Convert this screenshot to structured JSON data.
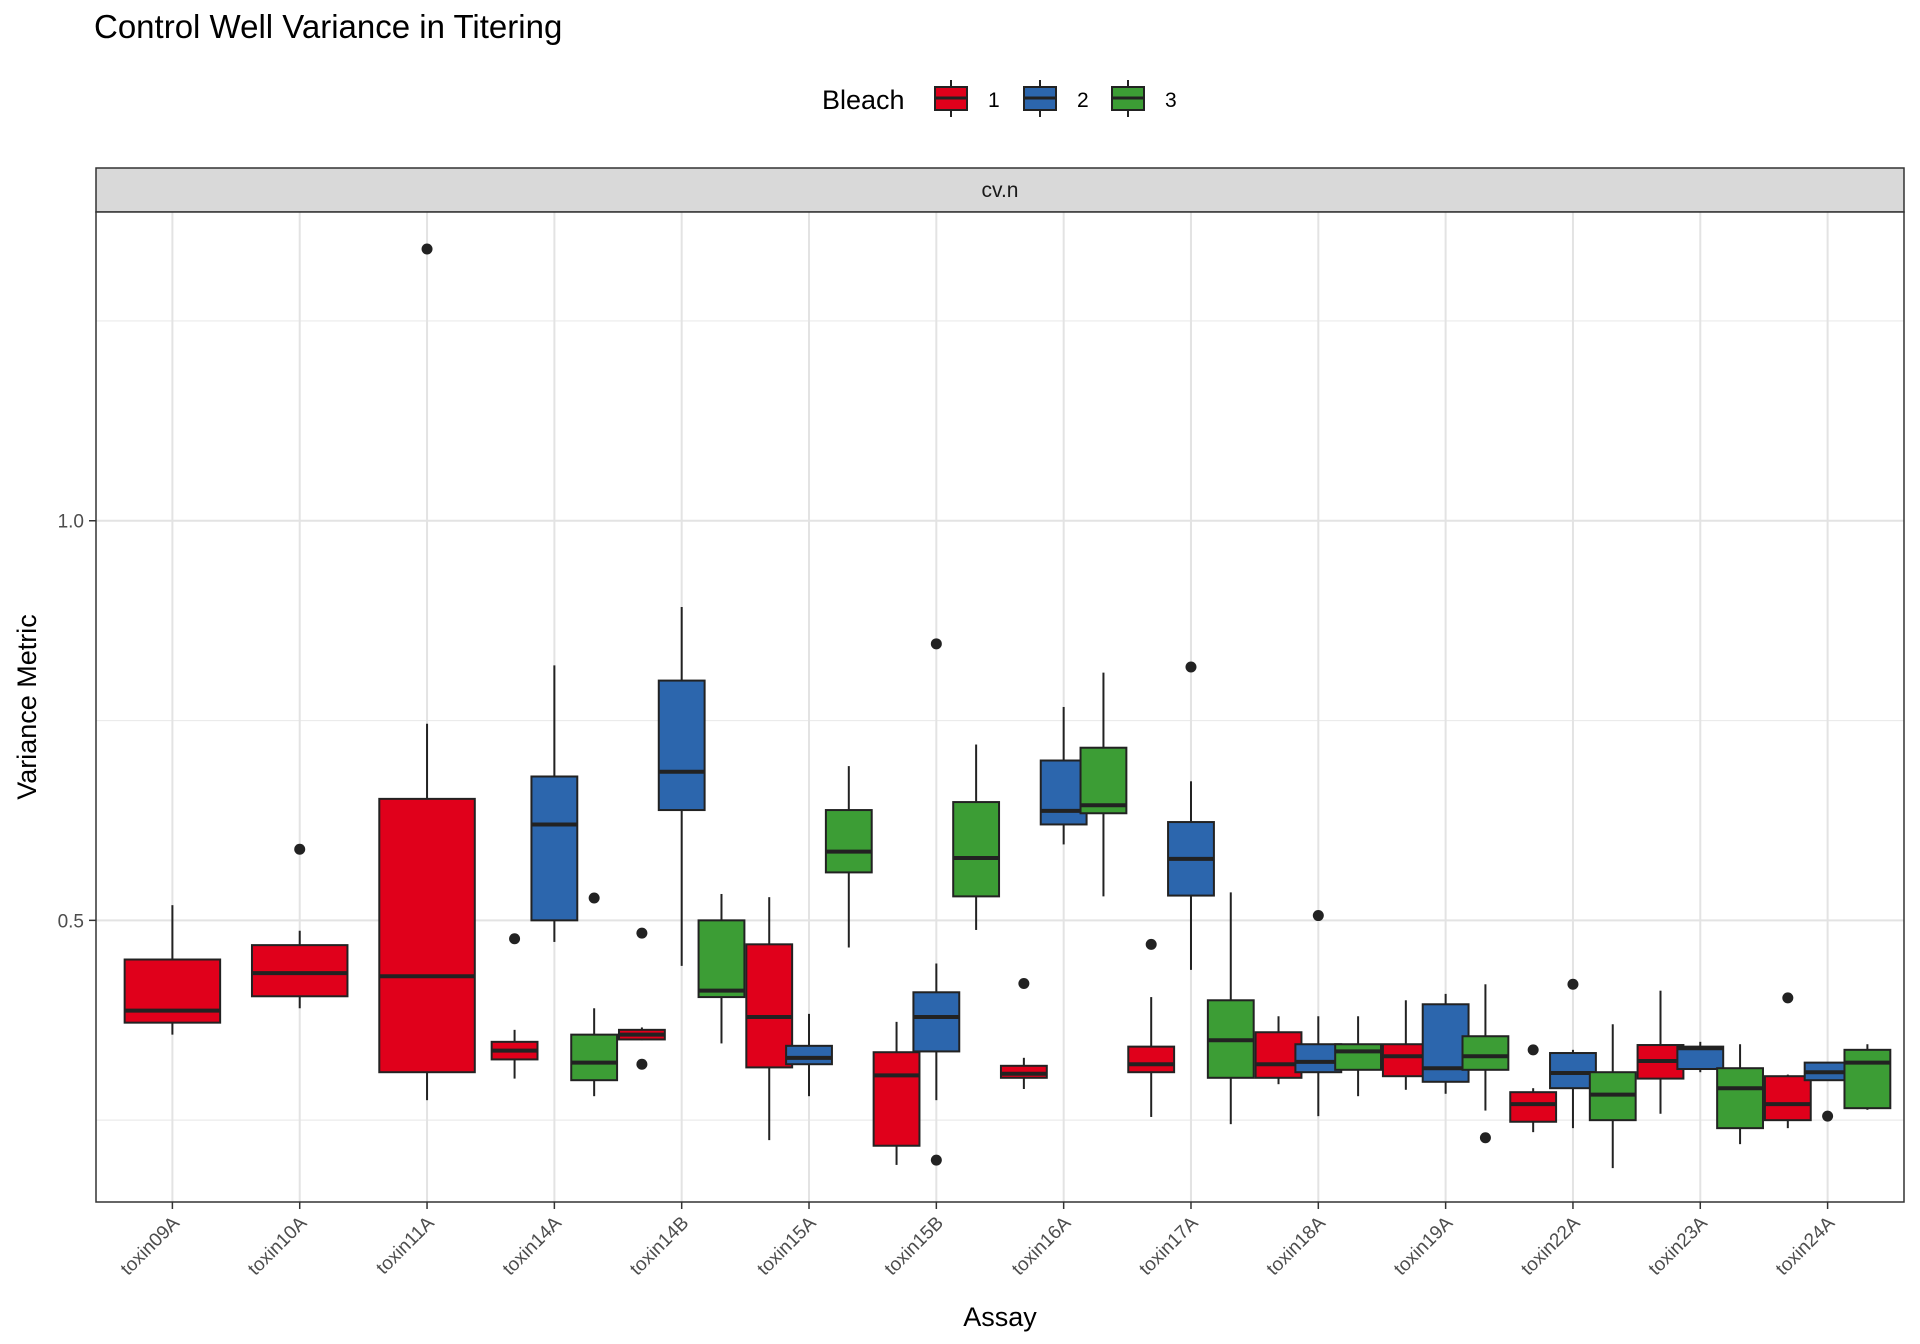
{
  "chart_data": {
    "type": "boxplot",
    "title": "Control Well Variance in Titering",
    "xlabel": "Assay",
    "ylabel": "Variance Metric",
    "facet_label": "cv.n",
    "legend_title": "Bleach",
    "legend_position": "top",
    "ylim": [
      0.1476,
      1.3863
    ],
    "yticks": [
      0.5,
      1.0
    ],
    "ytick_labels": [
      "0.5",
      "1.0"
    ],
    "minor_grid_y": [
      0.25,
      0.75,
      1.25
    ],
    "grid": true,
    "categories": [
      "toxin09A",
      "toxin10A",
      "toxin11A",
      "toxin14A",
      "toxin14B",
      "toxin15A",
      "toxin15B",
      "toxin16A",
      "toxin17A",
      "toxin18A",
      "toxin19A",
      "toxin22A",
      "toxin23A",
      "toxin24A"
    ],
    "series": [
      {
        "name": "1",
        "color": "#e0001b",
        "boxes": [
          {
            "category": "toxin09A",
            "n_groups": 1,
            "slot": 0,
            "min": 0.357,
            "q1": 0.372,
            "median": 0.387,
            "q3": 0.451,
            "max": 0.519,
            "outliers": []
          },
          {
            "category": "toxin10A",
            "n_groups": 1,
            "slot": 0,
            "min": 0.39,
            "q1": 0.405,
            "median": 0.434,
            "q3": 0.469,
            "max": 0.487,
            "outliers": [
              0.589
            ]
          },
          {
            "category": "toxin11A",
            "n_groups": 1,
            "slot": 0,
            "min": 0.275,
            "q1": 0.31,
            "median": 0.43,
            "q3": 0.652,
            "max": 0.746,
            "outliers": [
              1.34
            ]
          },
          {
            "category": "toxin14A",
            "n_groups": 3,
            "slot": 0,
            "min": 0.302,
            "q1": 0.326,
            "median": 0.337,
            "q3": 0.348,
            "max": 0.363,
            "outliers": [
              0.477
            ]
          },
          {
            "category": "toxin14B",
            "n_groups": 3,
            "slot": 0,
            "min": 0.35,
            "q1": 0.351,
            "median": 0.357,
            "q3": 0.363,
            "max": 0.366,
            "outliers": [
              0.484,
              0.32
            ]
          },
          {
            "category": "toxin15A",
            "n_groups": 3,
            "slot": 0,
            "min": 0.225,
            "q1": 0.316,
            "median": 0.379,
            "q3": 0.47,
            "max": 0.529,
            "outliers": []
          },
          {
            "category": "toxin15B",
            "n_groups": 3,
            "slot": 0,
            "min": 0.194,
            "q1": 0.218,
            "median": 0.306,
            "q3": 0.335,
            "max": 0.373,
            "outliers": []
          },
          {
            "category": "toxin16A",
            "n_groups": 3,
            "slot": 0,
            "min": 0.289,
            "q1": 0.303,
            "median": 0.308,
            "q3": 0.318,
            "max": 0.328,
            "outliers": [
              0.421
            ]
          },
          {
            "category": "toxin17A",
            "n_groups": 3,
            "slot": 0,
            "min": 0.254,
            "q1": 0.31,
            "median": 0.32,
            "q3": 0.342,
            "max": 0.404,
            "outliers": [
              0.47
            ]
          },
          {
            "category": "toxin18A",
            "n_groups": 3,
            "slot": 0,
            "min": 0.295,
            "q1": 0.303,
            "median": 0.32,
            "q3": 0.36,
            "max": 0.38,
            "outliers": []
          },
          {
            "category": "toxin19A",
            "n_groups": 3,
            "slot": 0,
            "min": 0.288,
            "q1": 0.305,
            "median": 0.33,
            "q3": 0.345,
            "max": 0.4,
            "outliers": []
          },
          {
            "category": "toxin22A",
            "n_groups": 3,
            "slot": 0,
            "min": 0.235,
            "q1": 0.248,
            "median": 0.27,
            "q3": 0.285,
            "max": 0.29,
            "outliers": [
              0.338
            ]
          },
          {
            "category": "toxin23A",
            "n_groups": 3,
            "slot": 0,
            "min": 0.258,
            "q1": 0.302,
            "median": 0.324,
            "q3": 0.344,
            "max": 0.412,
            "outliers": []
          },
          {
            "category": "toxin24A",
            "n_groups": 3,
            "slot": 0,
            "min": 0.24,
            "q1": 0.25,
            "median": 0.27,
            "q3": 0.305,
            "max": 0.307,
            "outliers": [
              0.403
            ]
          }
        ]
      },
      {
        "name": "2",
        "color": "#2c66ad",
        "boxes": [
          {
            "category": "toxin14A",
            "n_groups": 3,
            "slot": 1,
            "min": 0.473,
            "q1": 0.5,
            "median": 0.62,
            "q3": 0.68,
            "max": 0.819,
            "outliers": []
          },
          {
            "category": "toxin14B",
            "n_groups": 3,
            "slot": 1,
            "min": 0.443,
            "q1": 0.638,
            "median": 0.686,
            "q3": 0.8,
            "max": 0.892,
            "outliers": []
          },
          {
            "category": "toxin15A",
            "n_groups": 3,
            "slot": 1,
            "min": 0.28,
            "q1": 0.32,
            "median": 0.328,
            "q3": 0.343,
            "max": 0.383,
            "outliers": []
          },
          {
            "category": "toxin15B",
            "n_groups": 3,
            "slot": 1,
            "min": 0.275,
            "q1": 0.336,
            "median": 0.379,
            "q3": 0.41,
            "max": 0.446,
            "outliers": [
              0.846,
              0.2
            ]
          },
          {
            "category": "toxin16A",
            "n_groups": 3,
            "slot": 1,
            "min": 0.595,
            "q1": 0.62,
            "median": 0.637,
            "q3": 0.7,
            "max": 0.767,
            "outliers": []
          },
          {
            "category": "toxin17A",
            "n_groups": 3,
            "slot": 1,
            "min": 0.438,
            "q1": 0.531,
            "median": 0.577,
            "q3": 0.623,
            "max": 0.674,
            "outliers": [
              0.817
            ]
          },
          {
            "category": "toxin18A",
            "n_groups": 3,
            "slot": 1,
            "min": 0.255,
            "q1": 0.31,
            "median": 0.323,
            "q3": 0.345,
            "max": 0.38,
            "outliers": [
              0.506
            ]
          },
          {
            "category": "toxin19A",
            "n_groups": 3,
            "slot": 1,
            "min": 0.283,
            "q1": 0.298,
            "median": 0.315,
            "q3": 0.395,
            "max": 0.408,
            "outliers": []
          },
          {
            "category": "toxin22A",
            "n_groups": 3,
            "slot": 1,
            "min": 0.24,
            "q1": 0.29,
            "median": 0.309,
            "q3": 0.334,
            "max": 0.338,
            "outliers": [
              0.42
            ]
          },
          {
            "category": "toxin23A",
            "n_groups": 3,
            "slot": 1,
            "min": 0.31,
            "q1": 0.314,
            "median": 0.34,
            "q3": 0.342,
            "max": 0.348,
            "outliers": []
          },
          {
            "category": "toxin24A",
            "n_groups": 3,
            "slot": 1,
            "min": 0.299,
            "q1": 0.3,
            "median": 0.31,
            "q3": 0.322,
            "max": 0.322,
            "outliers": [
              0.255
            ]
          }
        ]
      },
      {
        "name": "3",
        "color": "#3c9d35",
        "boxes": [
          {
            "category": "toxin14A",
            "n_groups": 3,
            "slot": 2,
            "min": 0.28,
            "q1": 0.3,
            "median": 0.322,
            "q3": 0.357,
            "max": 0.39,
            "outliers": [
              0.528
            ]
          },
          {
            "category": "toxin14B",
            "n_groups": 3,
            "slot": 2,
            "min": 0.346,
            "q1": 0.404,
            "median": 0.412,
            "q3": 0.5,
            "max": 0.533,
            "outliers": []
          },
          {
            "category": "toxin15A",
            "n_groups": 3,
            "slot": 2,
            "min": 0.466,
            "q1": 0.56,
            "median": 0.586,
            "q3": 0.638,
            "max": 0.693,
            "outliers": []
          },
          {
            "category": "toxin15B",
            "n_groups": 3,
            "slot": 2,
            "min": 0.488,
            "q1": 0.53,
            "median": 0.578,
            "q3": 0.648,
            "max": 0.72,
            "outliers": []
          },
          {
            "category": "toxin16A",
            "n_groups": 3,
            "slot": 2,
            "min": 0.53,
            "q1": 0.634,
            "median": 0.644,
            "q3": 0.716,
            "max": 0.81,
            "outliers": []
          },
          {
            "category": "toxin17A",
            "n_groups": 3,
            "slot": 2,
            "min": 0.245,
            "q1": 0.303,
            "median": 0.35,
            "q3": 0.4,
            "max": 0.535,
            "outliers": []
          },
          {
            "category": "toxin18A",
            "n_groups": 3,
            "slot": 2,
            "min": 0.28,
            "q1": 0.313,
            "median": 0.336,
            "q3": 0.345,
            "max": 0.38,
            "outliers": []
          },
          {
            "category": "toxin19A",
            "n_groups": 3,
            "slot": 2,
            "min": 0.262,
            "q1": 0.313,
            "median": 0.33,
            "q3": 0.355,
            "max": 0.42,
            "outliers": [
              0.228
            ]
          },
          {
            "category": "toxin22A",
            "n_groups": 3,
            "slot": 2,
            "min": 0.19,
            "q1": 0.25,
            "median": 0.282,
            "q3": 0.31,
            "max": 0.37,
            "outliers": []
          },
          {
            "category": "toxin23A",
            "n_groups": 3,
            "slot": 2,
            "min": 0.22,
            "q1": 0.24,
            "median": 0.29,
            "q3": 0.315,
            "max": 0.345,
            "outliers": []
          },
          {
            "category": "toxin24A",
            "n_groups": 3,
            "slot": 2,
            "min": 0.263,
            "q1": 0.265,
            "median": 0.322,
            "q3": 0.338,
            "max": 0.345,
            "outliers": []
          }
        ]
      }
    ]
  }
}
